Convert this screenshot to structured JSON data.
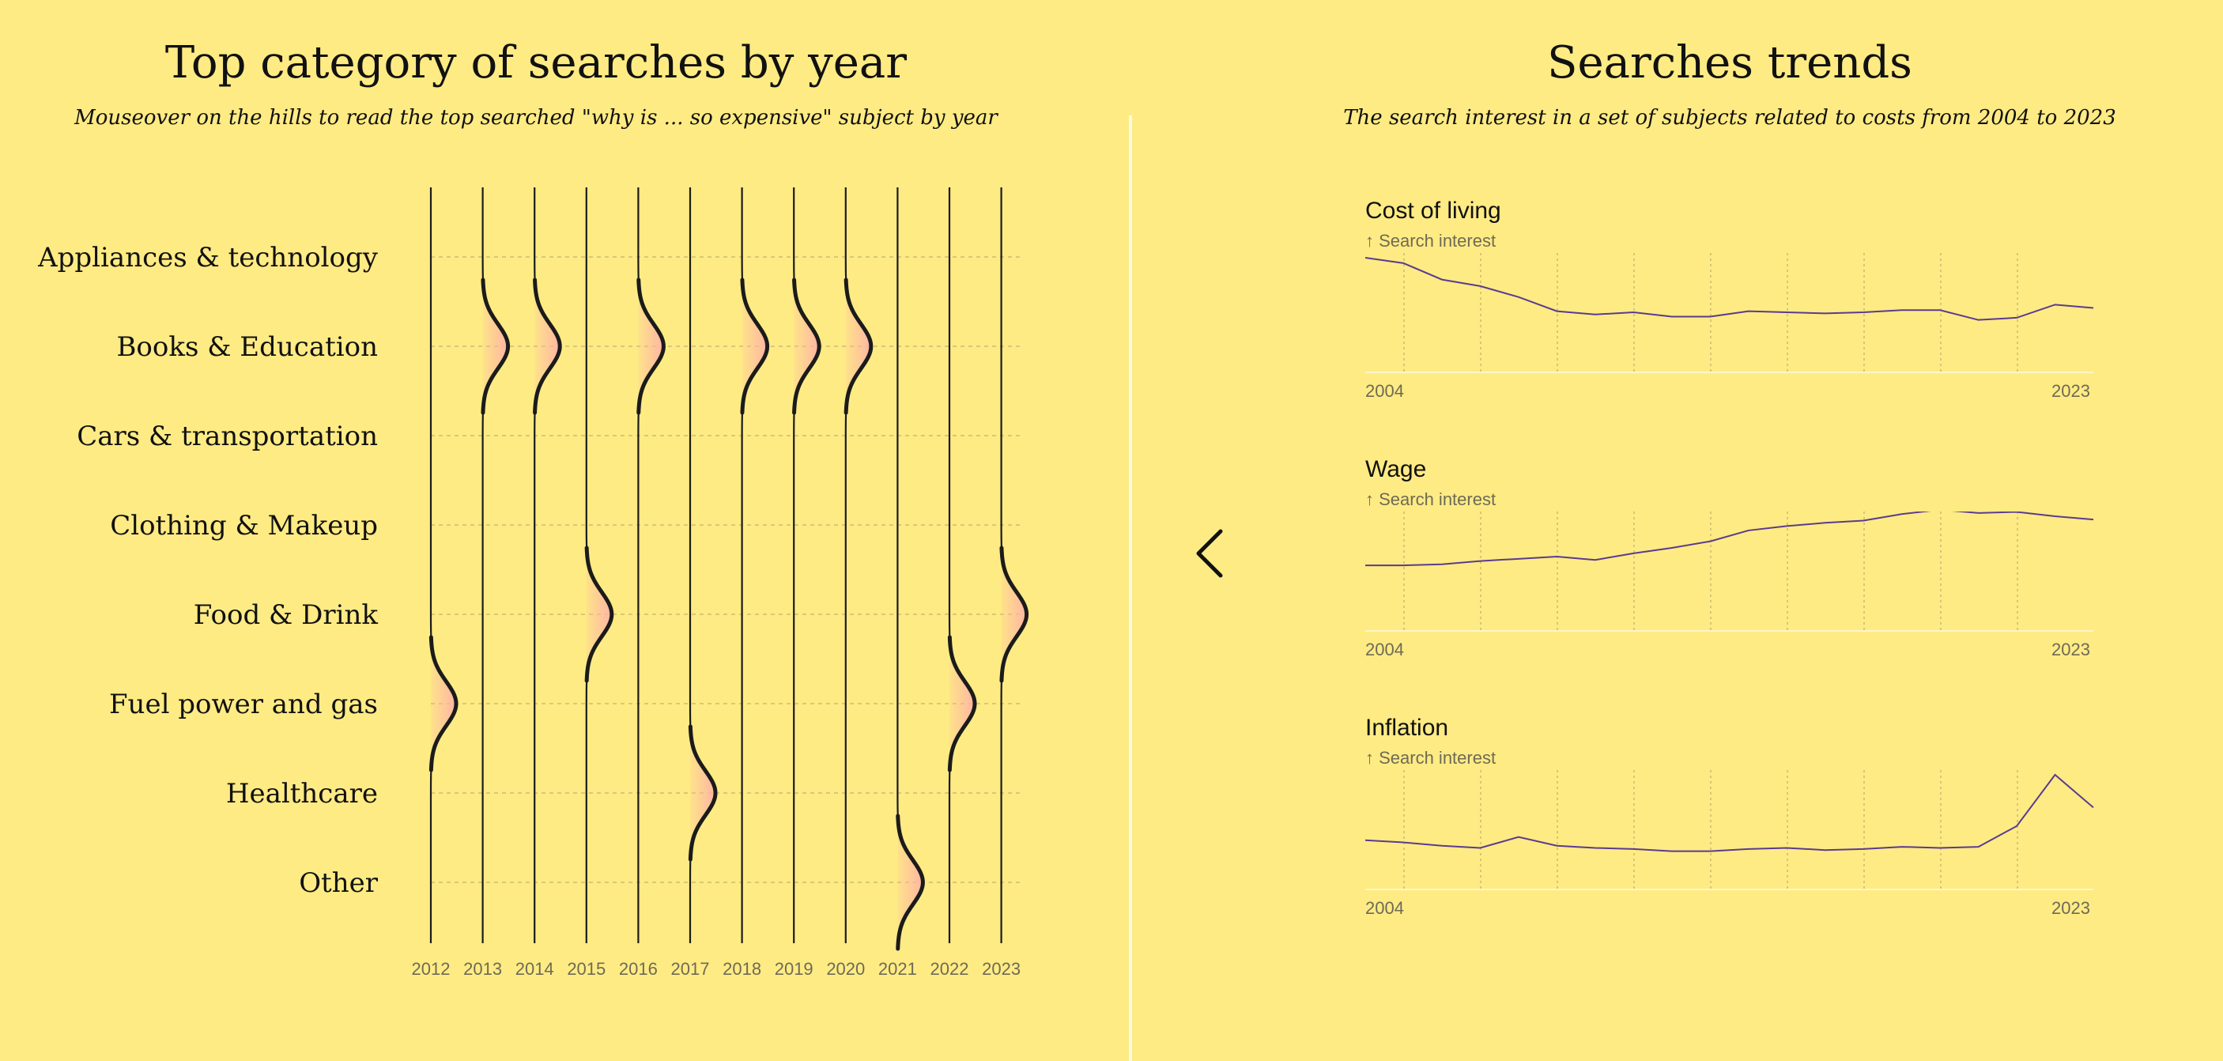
{
  "left": {
    "title": "Top category of searches by year",
    "subtitle": "Mouseover on the hills to read the top searched \"why is ... so expensive\" subject by year"
  },
  "right": {
    "title": "Searches trends",
    "subtitle": "The search interest in a set of subjects related to costs from 2004 to 2023"
  },
  "nav": {
    "back_icon": "chevron-left-icon"
  },
  "colors": {
    "background": "#FEEB84",
    "hill_stroke": "#1b1b1b",
    "hill_fill": "#FFB2A6",
    "line": "#5a3b8f",
    "divider": "#FFFBE0"
  },
  "chart_data": [
    {
      "type": "ridge",
      "title": "Top category of searches by year",
      "categories": [
        "Appliances & technology",
        "Books & Education",
        "Cars & transportation",
        "Clothing & Makeup",
        "Food & Drink",
        "Fuel power and gas",
        "Healthcare",
        "Other"
      ],
      "years": [
        "2012",
        "2013",
        "2014",
        "2015",
        "2016",
        "2017",
        "2018",
        "2019",
        "2020",
        "2021",
        "2022",
        "2023"
      ],
      "top_category_by_year": [
        "Fuel power and gas",
        "Books & Education",
        "Books & Education",
        "Food & Drink",
        "Books & Education",
        "Healthcare",
        "Books & Education",
        "Books & Education",
        "Books & Education",
        "Other",
        "Fuel power and gas",
        "Food & Drink"
      ]
    },
    {
      "type": "line",
      "title": "Cost of living",
      "ylabel": "↑ Search interest",
      "x_start": "2004",
      "x_end": "2023",
      "x": [
        2004,
        2005,
        2006,
        2007,
        2008,
        2009,
        2010,
        2011,
        2012,
        2013,
        2014,
        2015,
        2016,
        2017,
        2018,
        2019,
        2020,
        2021,
        2022,
        2023
      ],
      "values": [
        100,
        95,
        80,
        74,
        64,
        51,
        48,
        50,
        46,
        46,
        51,
        50,
        49,
        50,
        52,
        52,
        43,
        45,
        57,
        54
      ],
      "ylim": [
        0,
        100
      ]
    },
    {
      "type": "line",
      "title": "Wage",
      "ylabel": "↑ Search interest",
      "x_start": "2004",
      "x_end": "2023",
      "x": [
        2004,
        2005,
        2006,
        2007,
        2008,
        2009,
        2010,
        2011,
        2012,
        2013,
        2014,
        2015,
        2016,
        2017,
        2018,
        2019,
        2020,
        2021,
        2022,
        2023
      ],
      "values": [
        55,
        55,
        56,
        59,
        61,
        63,
        60,
        66,
        71,
        77,
        87,
        91,
        94,
        96,
        102,
        106,
        103,
        104,
        100,
        97
      ],
      "ylim": [
        0,
        100
      ]
    },
    {
      "type": "line",
      "title": "Inflation",
      "ylabel": "↑ Search interest",
      "x_start": "2004",
      "x_end": "2023",
      "x": [
        2004,
        2005,
        2006,
        2007,
        2008,
        2009,
        2010,
        2011,
        2012,
        2013,
        2014,
        2015,
        2016,
        2017,
        2018,
        2019,
        2020,
        2021,
        2022,
        2023
      ],
      "values": [
        40,
        38,
        35,
        33,
        43,
        35,
        33,
        32,
        30,
        30,
        32,
        33,
        31,
        32,
        34,
        33,
        34,
        53,
        100,
        70
      ],
      "ylim": [
        0,
        100
      ]
    }
  ]
}
